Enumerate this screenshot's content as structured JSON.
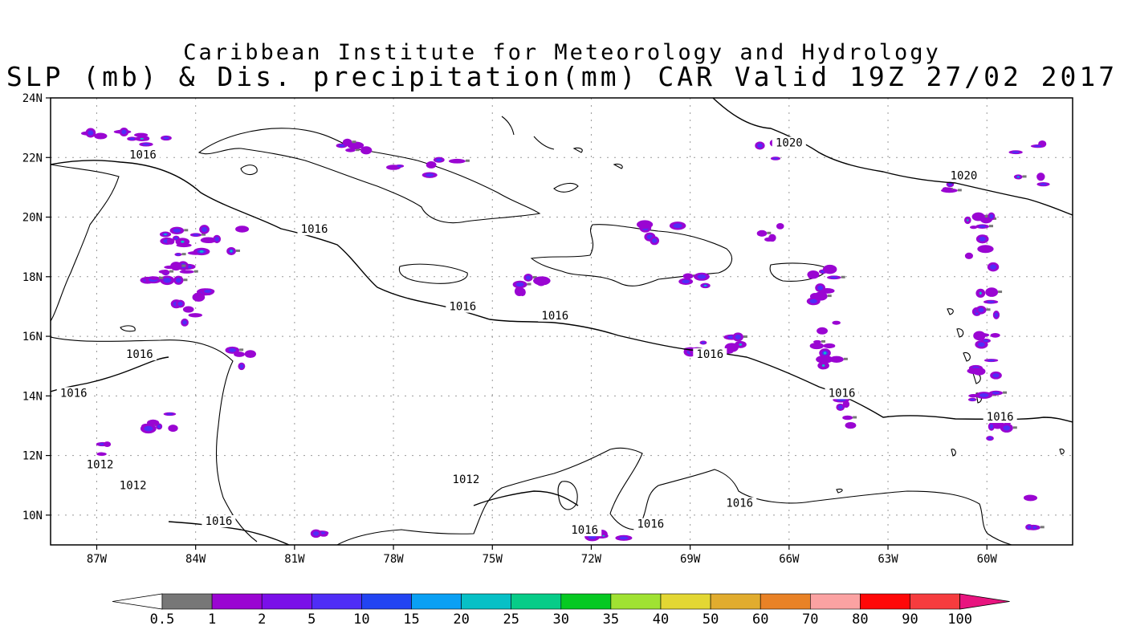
{
  "title": "Caribbean Institute for Meteorology and Hydrology",
  "subtitle": "SLP (mb) & Dis. precipitation(mm) CAR Valid 19Z 27/02 2017",
  "map": {
    "lat_labels": [
      "24N",
      "22N",
      "20N",
      "18N",
      "16N",
      "14N",
      "12N",
      "10N"
    ],
    "lat_values": [
      24,
      22,
      20,
      18,
      16,
      14,
      12,
      10
    ],
    "lon_labels": [
      "87W",
      "84W",
      "81W",
      "78W",
      "75W",
      "72W",
      "69W",
      "66W",
      "63W",
      "60W"
    ],
    "lon_values": [
      -87,
      -84,
      -81,
      -78,
      -75,
      -72,
      -69,
      -66,
      -63,
      -60
    ],
    "lon_range": [
      -88.4,
      -57.4
    ],
    "lat_range": [
      9,
      24
    ],
    "grid": true,
    "isobar_labels": [
      {
        "text": "1016",
        "lon": -85.6,
        "lat": 22.0
      },
      {
        "text": "1016",
        "lon": -80.4,
        "lat": 19.5
      },
      {
        "text": "1016",
        "lon": -75.9,
        "lat": 16.9
      },
      {
        "text": "1016",
        "lon": -73.1,
        "lat": 16.6
      },
      {
        "text": "1016",
        "lon": -68.4,
        "lat": 15.3
      },
      {
        "text": "1016",
        "lon": -64.4,
        "lat": 14.0
      },
      {
        "text": "1016",
        "lon": -59.6,
        "lat": 13.2
      },
      {
        "text": "1016",
        "lon": -85.7,
        "lat": 15.3
      },
      {
        "text": "1016",
        "lon": -87.7,
        "lat": 14.0
      },
      {
        "text": "1016",
        "lon": -83.3,
        "lat": 9.7
      },
      {
        "text": "1016",
        "lon": -72.2,
        "lat": 9.4
      },
      {
        "text": "1016",
        "lon": -70.2,
        "lat": 9.6
      },
      {
        "text": "1016",
        "lon": -67.5,
        "lat": 10.3
      },
      {
        "text": "1020",
        "lon": -66.0,
        "lat": 22.4
      },
      {
        "text": "1020",
        "lon": -60.7,
        "lat": 21.3
      },
      {
        "text": "1012",
        "lon": -86.9,
        "lat": 11.6
      },
      {
        "text": "1012",
        "lon": -85.9,
        "lat": 10.9
      },
      {
        "text": "1012",
        "lon": -75.8,
        "lat": 11.1
      }
    ]
  },
  "colorbar": {
    "labels": [
      "0.5",
      "1",
      "2",
      "5",
      "10",
      "15",
      "20",
      "25",
      "30",
      "35",
      "40",
      "50",
      "60",
      "70",
      "80",
      "90",
      "100"
    ],
    "colors": [
      "#ffffff",
      "#777777",
      "#9a05d2",
      "#7a10e8",
      "#4f2df6",
      "#2244f2",
      "#0aa0f4",
      "#07c0c6",
      "#07cc88",
      "#06c922",
      "#a0e232",
      "#e3d733",
      "#e1ac2e",
      "#e98226",
      "#fba2a2",
      "#ff0808",
      "#f63c3e",
      "#e8147f"
    ]
  },
  "precip_colors": {
    "light": "#9a05d2",
    "moderate": "#7a10e8",
    "heavy": "#4f2df6",
    "core": "#07c0c6",
    "trace": "#777777"
  }
}
